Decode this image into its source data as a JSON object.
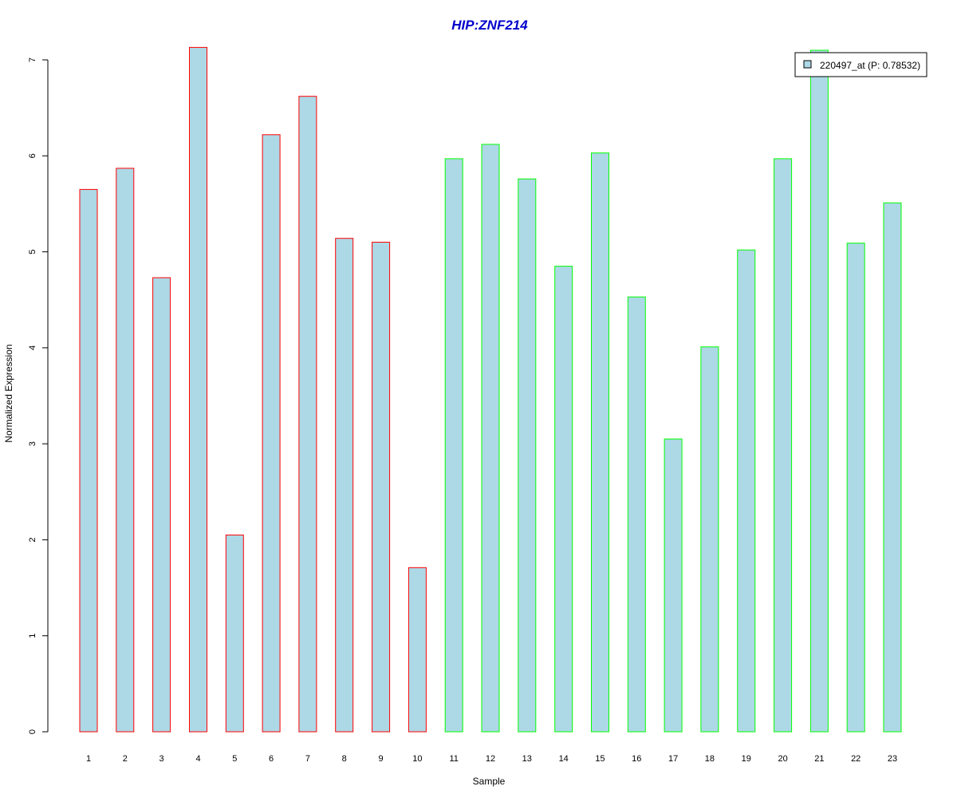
{
  "chart_data": {
    "type": "bar",
    "title": "HIP:ZNF214",
    "title_color": "#0000CC",
    "xlabel": "Sample",
    "ylabel": "Normalized Expression",
    "ylim": [
      0,
      7
    ],
    "yticks": [
      0,
      1,
      2,
      3,
      4,
      5,
      6,
      7
    ],
    "grid": false,
    "legend_position": "top-right",
    "bar_fill": "#ADD8E6",
    "categories": [
      "1",
      "2",
      "3",
      "4",
      "5",
      "6",
      "7",
      "8",
      "9",
      "10",
      "11",
      "12",
      "13",
      "14",
      "15",
      "16",
      "17",
      "18",
      "19",
      "20",
      "21",
      "22",
      "23"
    ],
    "series": [
      {
        "name": "220497_at (P: 0.78532)",
        "values": [
          5.65,
          5.87,
          4.73,
          7.13,
          2.05,
          6.22,
          6.62,
          5.14,
          5.1,
          1.71,
          5.97,
          6.12,
          5.76,
          4.85,
          6.03,
          4.53,
          3.05,
          4.01,
          5.02,
          5.97,
          7.1,
          5.09,
          5.51
        ]
      }
    ],
    "bar_border_colors": [
      "#FF0000",
      "#FF0000",
      "#FF0000",
      "#FF0000",
      "#FF0000",
      "#FF0000",
      "#FF0000",
      "#FF0000",
      "#FF0000",
      "#FF0000",
      "#00FF00",
      "#00FF00",
      "#00FF00",
      "#00FF00",
      "#00FF00",
      "#00FF00",
      "#00FF00",
      "#00FF00",
      "#00FF00",
      "#00FF00",
      "#00FF00",
      "#00FF00",
      "#00FF00"
    ]
  }
}
